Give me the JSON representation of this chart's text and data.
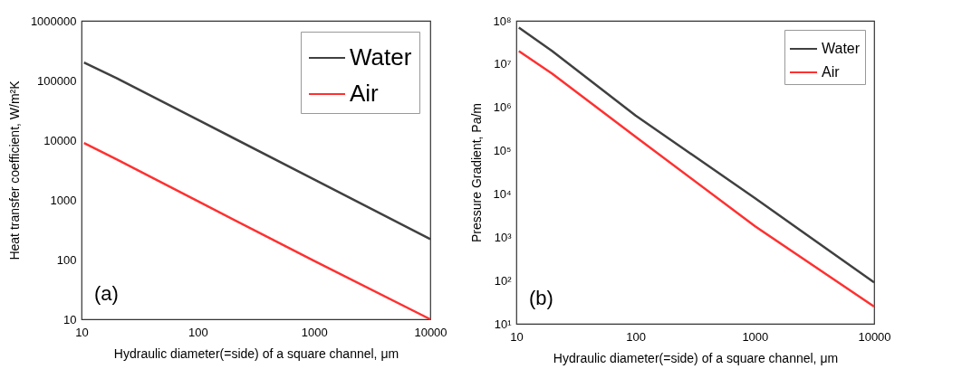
{
  "chart_data": [
    {
      "type": "line",
      "xlabel": "Hydraulic diameter(=side) of a square channel, μm",
      "ylabel": "Heat transfer coefficient, W/m²K",
      "log": "xy",
      "grid": false,
      "legend": "top right",
      "marker": "none",
      "line_style": "solid",
      "x": [
        10.5,
        20,
        100,
        1000,
        10000
      ],
      "xlim": [
        10,
        10000
      ],
      "xticks": [
        10,
        100,
        1000,
        10000
      ],
      "ylim": [
        10,
        1000000
      ],
      "yticks": [
        10,
        100,
        1000,
        10000,
        100000,
        1000000
      ],
      "series": [
        {
          "name": "Water",
          "color": "#404040",
          "values": [
            200000,
            110000,
            22000,
            2200,
            220
          ]
        },
        {
          "name": "Air",
          "color": "#ff3030",
          "values": [
            9000,
            4800,
            950,
            95,
            10
          ]
        }
      ],
      "annotations": [
        "(a)"
      ]
    },
    {
      "type": "line",
      "xlabel": "Hydraulic diameter(=side) of a square channel, μm",
      "ylabel": "Pressure Gradient, Pa/m",
      "log": "xy",
      "grid": false,
      "legend": "top right",
      "marker": "none",
      "line_style": "solid",
      "x": [
        10.5,
        20,
        100,
        1000,
        10000
      ],
      "xlim": [
        10,
        10000
      ],
      "xticks": [
        10,
        100,
        1000,
        10000
      ],
      "ylim": [
        10,
        100000000
      ],
      "yticks": [
        {
          "value": 10,
          "label": "10¹"
        },
        {
          "value": 100,
          "label": "10²"
        },
        {
          "value": 1000,
          "label": "10³"
        },
        {
          "value": 10000,
          "label": "10⁴"
        },
        {
          "value": 100000,
          "label": "10⁵"
        },
        {
          "value": 1000000,
          "label": "10⁶"
        },
        {
          "value": 10000000,
          "label": "10⁷"
        },
        {
          "value": 100000000,
          "label": "10⁸"
        }
      ],
      "series": [
        {
          "name": "Water",
          "color": "#404040",
          "values": [
            70000000,
            20000000,
            650000,
            8000,
            90
          ]
        },
        {
          "name": "Air",
          "color": "#ff3030",
          "values": [
            20000000,
            6000000,
            210000,
            1800,
            25
          ]
        }
      ],
      "annotations": [
        "(b)"
      ]
    }
  ]
}
